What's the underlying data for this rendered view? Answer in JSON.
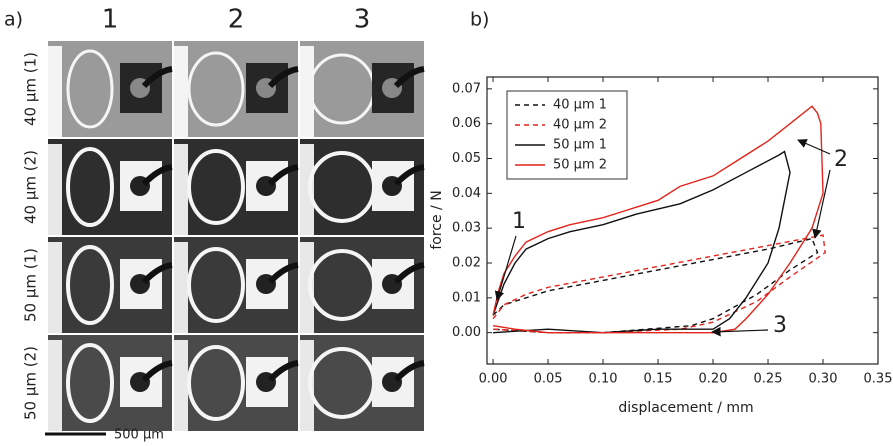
{
  "panel_a": {
    "label": "a)",
    "columns": [
      "1",
      "2",
      "3"
    ],
    "rows": [
      "40 µm (1)",
      "40 µm (2)",
      "50 µm (1)",
      "50 µm (2)"
    ],
    "scale_bar": "500 µm"
  },
  "chart_data": {
    "type": "line",
    "panel_label": "b)",
    "x_label": "displacement / mm",
    "y_label": "force / N",
    "xlim": [
      -0.0055,
      0.35
    ],
    "ylim": [
      -0.009,
      0.0734
    ],
    "xticks": [
      {
        "value": 0,
        "label": "0.00"
      },
      {
        "value": 0.05,
        "label": "0.05"
      },
      {
        "value": 0.1,
        "label": "0.10"
      },
      {
        "value": 0.15,
        "label": "0.15"
      },
      {
        "value": 0.2,
        "label": "0.20"
      },
      {
        "value": 0.25,
        "label": "0.25"
      },
      {
        "value": 0.3,
        "label": "0.30"
      },
      {
        "value": 0.35,
        "label": "0.35"
      }
    ],
    "yticks": [
      {
        "value": 0,
        "label": "0.00"
      },
      {
        "value": 0.01,
        "label": "0.01"
      },
      {
        "value": 0.02,
        "label": "0.02"
      },
      {
        "value": 0.03,
        "label": "0.03"
      },
      {
        "value": 0.04,
        "label": "0.04"
      },
      {
        "value": 0.05,
        "label": "0.05"
      },
      {
        "value": 0.06,
        "label": "0.06"
      },
      {
        "value": 0.07,
        "label": "0.07"
      }
    ],
    "legend": "upper left",
    "series": [
      {
        "name": "40 µm 1",
        "color": "#111111",
        "linestyle": "dashed",
        "x": [
          0,
          0.01,
          0.03,
          0.05,
          0.1,
          0.15,
          0.2,
          0.25,
          0.29,
          0.295,
          0.27,
          0.24,
          0.2,
          0.18,
          0.1,
          0.05,
          0
        ],
        "y": [
          0.005,
          0.008,
          0.01,
          0.012,
          0.015,
          0.018,
          0.021,
          0.024,
          0.027,
          0.023,
          0.018,
          0.011,
          0.004,
          0.002,
          0.0,
          0.0,
          0.001
        ]
      },
      {
        "name": "40 µm 2",
        "color": "#e3241b",
        "linestyle": "dashed",
        "x": [
          0,
          0.01,
          0.03,
          0.05,
          0.1,
          0.15,
          0.2,
          0.25,
          0.3,
          0.302,
          0.27,
          0.24,
          0.2,
          0.17,
          0.1,
          0.05,
          0
        ],
        "y": [
          0.004,
          0.008,
          0.011,
          0.013,
          0.016,
          0.019,
          0.022,
          0.025,
          0.028,
          0.023,
          0.016,
          0.009,
          0.003,
          0.001,
          0.0,
          0.0,
          0.001
        ]
      },
      {
        "name": "50 µm 1",
        "color": "#111111",
        "linestyle": "solid",
        "x": [
          0,
          0.01,
          0.02,
          0.03,
          0.05,
          0.07,
          0.1,
          0.13,
          0.17,
          0.2,
          0.23,
          0.26,
          0.265,
          0.27,
          0.26,
          0.25,
          0.23,
          0.215,
          0.2,
          0.15,
          0.1,
          0.05,
          0
        ],
        "y": [
          0.005,
          0.014,
          0.02,
          0.024,
          0.027,
          0.029,
          0.031,
          0.034,
          0.037,
          0.041,
          0.046,
          0.051,
          0.052,
          0.046,
          0.03,
          0.02,
          0.01,
          0.004,
          0.001,
          0.001,
          0.0,
          0.001,
          0.0
        ]
      },
      {
        "name": "50 µm 2",
        "color": "#e3241b",
        "linestyle": "solid",
        "x": [
          0,
          0.005,
          0.01,
          0.02,
          0.03,
          0.05,
          0.07,
          0.1,
          0.12,
          0.15,
          0.17,
          0.2,
          0.22,
          0.25,
          0.27,
          0.29,
          0.295,
          0.298,
          0.3,
          0.29,
          0.27,
          0.25,
          0.23,
          0.22,
          0.2,
          0.15,
          0.1,
          0.05,
          0.02,
          0
        ],
        "y": [
          0.005,
          0.012,
          0.017,
          0.022,
          0.026,
          0.029,
          0.031,
          0.033,
          0.035,
          0.038,
          0.042,
          0.045,
          0.049,
          0.055,
          0.06,
          0.065,
          0.063,
          0.06,
          0.04,
          0.03,
          0.02,
          0.011,
          0.004,
          0.001,
          0.0,
          0.0,
          0.0,
          0.0,
          0.001,
          0.002
        ]
      }
    ],
    "annotations": [
      "1",
      "2",
      "3"
    ]
  }
}
